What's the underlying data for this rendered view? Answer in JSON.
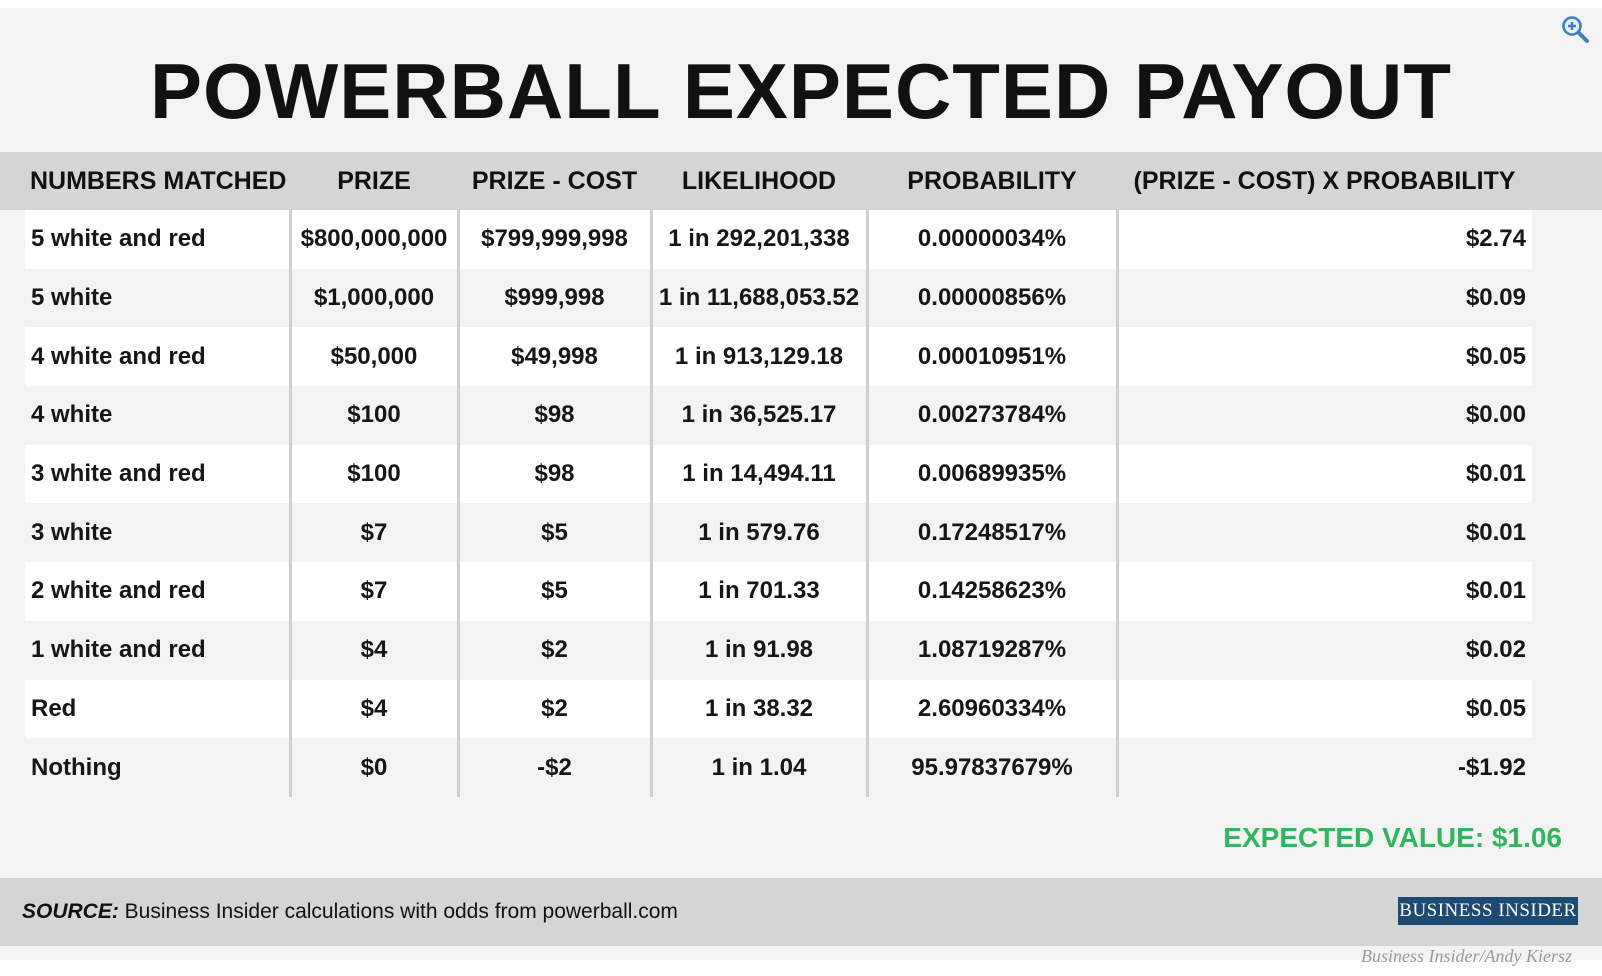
{
  "title": "POWERBALL EXPECTED PAYOUT",
  "chart_data": {
    "type": "table",
    "title": "POWERBALL EXPECTED PAYOUT",
    "columns": [
      "NUMBERS MATCHED",
      "PRIZE",
      "PRIZE - COST",
      "LIKELIHOOD",
      "PROBABILITY",
      "(PRIZE - COST) X PROBABILITY"
    ],
    "rows": [
      [
        "5 white and red",
        "$800,000,000",
        "$799,999,998",
        "1 in 292,201,338",
        "0.00000034%",
        "$2.74"
      ],
      [
        "5 white",
        "$1,000,000",
        "$999,998",
        "1 in 11,688,053.52",
        "0.00000856%",
        "$0.09"
      ],
      [
        "4 white and red",
        "$50,000",
        "$49,998",
        "1 in 913,129.18",
        "0.00010951%",
        "$0.05"
      ],
      [
        "4 white",
        "$100",
        "$98",
        "1 in 36,525.17",
        "0.00273784%",
        "$0.00"
      ],
      [
        "3 white and red",
        "$100",
        "$98",
        "1 in 14,494.11",
        "0.00689935%",
        "$0.01"
      ],
      [
        "3 white",
        "$7",
        "$5",
        "1 in 579.76",
        "0.17248517%",
        "$0.01"
      ],
      [
        "2 white and red",
        "$7",
        "$5",
        "1 in 701.33",
        "0.14258623%",
        "$0.01"
      ],
      [
        "1 white and red",
        "$4",
        "$2",
        "1 in 91.98",
        "1.08719287%",
        "$0.02"
      ],
      [
        "Red",
        "$4",
        "$2",
        "1 in 38.32",
        "2.60960334%",
        "$0.05"
      ],
      [
        "Nothing",
        "$0",
        "-$2",
        "1 in 1.04",
        "95.97837679%",
        "-$1.92"
      ]
    ],
    "expected_value": "EXPECTED VALUE: $1.06"
  },
  "source": {
    "label": "SOURCE:",
    "text": " Business Insider calculations with odds from powerball.com"
  },
  "brand": "BUSINESS INSIDER",
  "credit": "Business Insider/Andy Kiersz",
  "icons": {
    "zoom": "zoom-in-icon"
  },
  "colors": {
    "accent_green": "#2fb760",
    "header_band": "#d5d5d5",
    "brand_blue": "#1b4a73"
  }
}
